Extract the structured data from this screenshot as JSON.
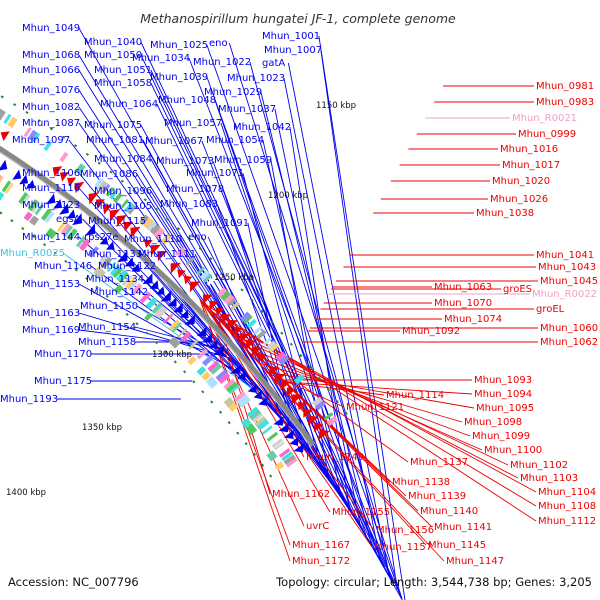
{
  "title": "Methanospirillum hungatei JF-1, complete genome",
  "footer": {
    "accession": "Accession: NC_007796",
    "topology": "Topology: circular; Length: 3,544,738 bp; Genes: 3,205"
  },
  "colors": {
    "forward_gene": "#0000ee",
    "reverse_gene": "#ee0000",
    "rna_gene": "#40c0e0",
    "rna_gene_reverse": "#f0a0c8",
    "backbone": "#888888",
    "tick": "#228833"
  },
  "kbp_ticks": [
    "1150 kbp",
    "1200 kbp",
    "1250 kbp",
    "1300 kbp",
    "1350 kbp",
    "1400 kbp"
  ],
  "labels": [
    {
      "text": "Mhun_1049",
      "strand": "fwd"
    },
    {
      "text": "Mhun_1040",
      "strand": "fwd"
    },
    {
      "text": "Mhun_1025",
      "strand": "fwd"
    },
    {
      "text": "eno",
      "strand": "fwd"
    },
    {
      "text": "Mhun_1001",
      "strand": "fwd"
    },
    {
      "text": "Mhun_1007",
      "strand": "fwd"
    },
    {
      "text": "Mhun_1068",
      "strand": "fwd"
    },
    {
      "text": "Mhun_1050",
      "strand": "fwd"
    },
    {
      "text": "Mhun_1034",
      "strand": "fwd"
    },
    {
      "text": "Mhun_1022",
      "strand": "fwd"
    },
    {
      "text": "gatA",
      "strand": "fwd"
    },
    {
      "text": "Mhun_1066",
      "strand": "fwd"
    },
    {
      "text": "Mhun_1051",
      "strand": "fwd"
    },
    {
      "text": "Mhun_1039",
      "strand": "fwd"
    },
    {
      "text": "Mhun_1023",
      "strand": "fwd"
    },
    {
      "text": "Mhun_1058",
      "strand": "fwd"
    },
    {
      "text": "Mhun_1029",
      "strand": "fwd"
    },
    {
      "text": "Mhun_1076",
      "strand": "fwd"
    },
    {
      "text": "Mhun_1048",
      "strand": "fwd"
    },
    {
      "text": "Mhun_1082",
      "strand": "fwd"
    },
    {
      "text": "Mhun_1064",
      "strand": "fwd"
    },
    {
      "text": "Mhun_1037",
      "strand": "fwd"
    },
    {
      "text": "Mhun_1087",
      "strand": "fwd"
    },
    {
      "text": "Mhun_1075",
      "strand": "fwd"
    },
    {
      "text": "Mhun_1057",
      "strand": "fwd"
    },
    {
      "text": "Mhun_1042",
      "strand": "fwd"
    },
    {
      "text": "Mhun_1097",
      "strand": "fwd"
    },
    {
      "text": "Mhun_1081",
      "strand": "fwd"
    },
    {
      "text": "Mhun_1067",
      "strand": "fwd"
    },
    {
      "text": "Mhun_1054",
      "strand": "fwd"
    },
    {
      "text": "Mhun_1084",
      "strand": "fwd"
    },
    {
      "text": "Mhun_1073",
      "strand": "fwd"
    },
    {
      "text": "Mhun_1059",
      "strand": "fwd"
    },
    {
      "text": "Mhun_1106",
      "strand": "fwd"
    },
    {
      "text": "Mhun_1086",
      "strand": "fwd"
    },
    {
      "text": "Mhun_1071",
      "strand": "fwd"
    },
    {
      "text": "Mhun_1116",
      "strand": "fwd"
    },
    {
      "text": "Mhun_1096",
      "strand": "fwd"
    },
    {
      "text": "Mhun_1078",
      "strand": "fwd"
    },
    {
      "text": "Mhun_1123",
      "strand": "fwd"
    },
    {
      "text": "Mhun_1105",
      "strand": "fwd"
    },
    {
      "text": "Mhun_1083",
      "strand": "fwd"
    },
    {
      "text": "egsA",
      "strand": "fwd"
    },
    {
      "text": "Mhun_1115",
      "strand": "fwd"
    },
    {
      "text": "Mhun_1091",
      "strand": "fwd"
    },
    {
      "text": "Mhun_1144",
      "strand": "fwd"
    },
    {
      "text": "rps27e",
      "strand": "fwd"
    },
    {
      "text": "Mhun_1110",
      "strand": "fwd"
    },
    {
      "text": "eno",
      "strand": "fwd"
    },
    {
      "text": "Mhun_R0025",
      "strand": "rna"
    },
    {
      "text": "Mhun_1133",
      "strand": "fwd"
    },
    {
      "text": "Mhun_1111",
      "strand": "fwd"
    },
    {
      "text": "Mhun_1146",
      "strand": "fwd"
    },
    {
      "text": "Mhun_1122",
      "strand": "fwd"
    },
    {
      "text": "Mhun_1153",
      "strand": "fwd"
    },
    {
      "text": "Mhun_1134",
      "strand": "fwd"
    },
    {
      "text": "Mhun_1142",
      "strand": "fwd"
    },
    {
      "text": "Mhun_1150",
      "strand": "fwd"
    },
    {
      "text": "Mhun_1163",
      "strand": "fwd"
    },
    {
      "text": "Mhun_1154",
      "strand": "fwd"
    },
    {
      "text": "Mhun_1169",
      "strand": "fwd"
    },
    {
      "text": "Mhun_1158",
      "strand": "fwd"
    },
    {
      "text": "Mhun_1170",
      "strand": "fwd"
    },
    {
      "text": "Mhun_1175",
      "strand": "fwd"
    },
    {
      "text": "Mhun_1193",
      "strand": "fwd"
    },
    {
      "text": "Mhun_0981",
      "strand": "rev"
    },
    {
      "text": "Mhun_0983",
      "strand": "rev"
    },
    {
      "text": "Mhun_R0021",
      "strand": "rna_rev"
    },
    {
      "text": "Mhun_0999",
      "strand": "rev"
    },
    {
      "text": "Mhun_1016",
      "strand": "rev"
    },
    {
      "text": "Mhun_1017",
      "strand": "rev"
    },
    {
      "text": "Mhun_1020",
      "strand": "rev"
    },
    {
      "text": "Mhun_1026",
      "strand": "rev"
    },
    {
      "text": "Mhun_1038",
      "strand": "rev"
    },
    {
      "text": "Mhun_1041",
      "strand": "rev"
    },
    {
      "text": "Mhun_1043",
      "strand": "rev"
    },
    {
      "text": "Mhun_1045",
      "strand": "rev"
    },
    {
      "text": "groES",
      "strand": "rev"
    },
    {
      "text": "Mhun_R0022",
      "strand": "rna_rev"
    },
    {
      "text": "Mhun_1063",
      "strand": "rev"
    },
    {
      "text": "Mhun_1070",
      "strand": "rev"
    },
    {
      "text": "groEL",
      "strand": "rev"
    },
    {
      "text": "Mhun_1074",
      "strand": "rev"
    },
    {
      "text": "Mhun_1060",
      "strand": "rev"
    },
    {
      "text": "Mhun_1092",
      "strand": "rev"
    },
    {
      "text": "Mhun_1062",
      "strand": "rev"
    },
    {
      "text": "Mhun_1093",
      "strand": "rev"
    },
    {
      "text": "Mhun_1114",
      "strand": "rev"
    },
    {
      "text": "Mhun_1094",
      "strand": "rev"
    },
    {
      "text": "Mhun_1121",
      "strand": "rev"
    },
    {
      "text": "Mhun_1095",
      "strand": "rev"
    },
    {
      "text": "Mhun_1098",
      "strand": "rev"
    },
    {
      "text": "Mhun_1099",
      "strand": "rev"
    },
    {
      "text": "Mhun_1100",
      "strand": "rev"
    },
    {
      "text": "Mhun_1149",
      "strand": "rev"
    },
    {
      "text": "Mhun_1137",
      "strand": "rev"
    },
    {
      "text": "Mhun_1102",
      "strand": "rev"
    },
    {
      "text": "Mhun_1103",
      "strand": "rev"
    },
    {
      "text": "Mhun_1138",
      "strand": "rev"
    },
    {
      "text": "Mhun_1104",
      "strand": "rev"
    },
    {
      "text": "Mhun_1162",
      "strand": "rev"
    },
    {
      "text": "Mhun_1139",
      "strand": "rev"
    },
    {
      "text": "Mhun_1108",
      "strand": "rev"
    },
    {
      "text": "Mhun_1140",
      "strand": "rev"
    },
    {
      "text": "Mhun_1155",
      "strand": "rev"
    },
    {
      "text": "Mhun_1112",
      "strand": "rev"
    },
    {
      "text": "uvrC",
      "strand": "rev"
    },
    {
      "text": "Mhun_1156",
      "strand": "rev"
    },
    {
      "text": "Mhun_1141",
      "strand": "rev"
    },
    {
      "text": "Mhun_1145",
      "strand": "rev"
    },
    {
      "text": "Mhun_1167",
      "strand": "rev"
    },
    {
      "text": "Mhun_1157",
      "strand": "rev"
    },
    {
      "text": "Mhun_1172",
      "strand": "rev"
    },
    {
      "text": "Mhun_1147",
      "strand": "rev"
    }
  ]
}
